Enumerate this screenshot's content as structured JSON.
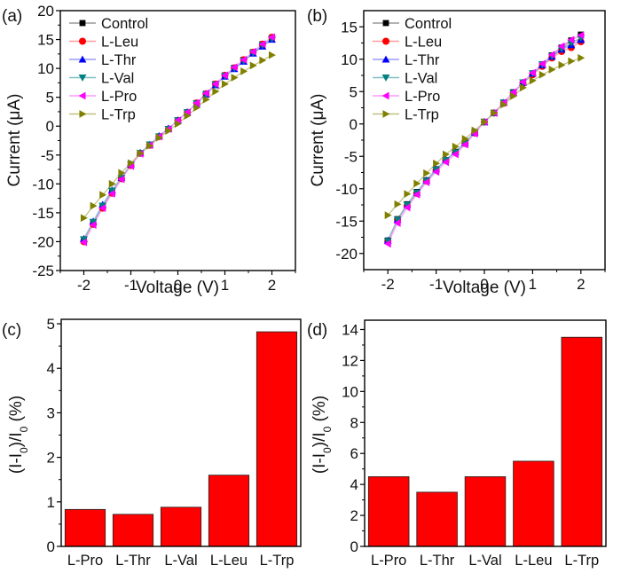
{
  "chart_data": [
    {
      "panel": "(a)",
      "type": "line",
      "xlabel": "Voltage (V)",
      "ylabel": "Current (μA)",
      "xlim": [
        -2.5,
        2.5
      ],
      "ylim": [
        -25,
        20
      ],
      "xticks": [
        -2,
        -1,
        0,
        1,
        2
      ],
      "yticks": [
        -25,
        -20,
        -15,
        -10,
        -5,
        0,
        5,
        10,
        15,
        20
      ],
      "legend_position": "top-left",
      "x": [
        -2,
        -1.8,
        -1.6,
        -1.4,
        -1.2,
        -1,
        -0.8,
        -0.6,
        -0.4,
        -0.2,
        0,
        0.2,
        0.4,
        0.6,
        0.8,
        1,
        1.2,
        1.4,
        1.6,
        1.8,
        2
      ],
      "series": [
        {
          "name": "Control",
          "color": "#000000",
          "line": "#9a9a9a",
          "marker": "square",
          "values": [
            -19.8,
            -16.8,
            -14.0,
            -11.5,
            -9.0,
            -6.7,
            -4.7,
            -3.3,
            -1.8,
            -0.5,
            1.0,
            2.4,
            4.0,
            5.6,
            7.3,
            8.8,
            10.1,
            11.5,
            12.8,
            14.2,
            15.3
          ]
        },
        {
          "name": "L-Leu",
          "color": "#ff0000",
          "line": "#ff9a9a",
          "marker": "circle",
          "values": [
            -20.0,
            -17.0,
            -14.2,
            -11.6,
            -9.1,
            -6.8,
            -4.7,
            -3.3,
            -1.8,
            -0.5,
            1.0,
            2.4,
            4.0,
            5.6,
            7.3,
            8.8,
            10.1,
            11.5,
            12.8,
            14.2,
            15.4
          ]
        },
        {
          "name": "L-Thr",
          "color": "#0000ff",
          "line": "#9a9aff",
          "marker": "triangle-up",
          "values": [
            -19.5,
            -16.5,
            -13.6,
            -11.1,
            -8.9,
            -6.6,
            -4.6,
            -3.2,
            -1.7,
            -0.4,
            1.0,
            2.4,
            3.9,
            5.5,
            7.1,
            8.6,
            9.9,
            11.2,
            12.6,
            13.8,
            15.0
          ]
        },
        {
          "name": "L-Val",
          "color": "#008080",
          "line": "#80c0c0",
          "marker": "triangle-down",
          "values": [
            -19.6,
            -16.6,
            -13.8,
            -11.2,
            -9.0,
            -6.7,
            -4.7,
            -3.2,
            -1.8,
            -0.5,
            1.0,
            2.4,
            3.9,
            5.5,
            7.2,
            8.7,
            10.0,
            11.3,
            12.7,
            14.0,
            15.1
          ]
        },
        {
          "name": "L-Pro",
          "color": "#ff00ff",
          "line": "#ff9aff",
          "marker": "triangle-left",
          "values": [
            -20.1,
            -17.1,
            -14.2,
            -11.7,
            -9.2,
            -6.9,
            -4.8,
            -3.3,
            -1.8,
            -0.5,
            1.0,
            2.4,
            4.0,
            5.7,
            7.3,
            8.8,
            10.2,
            11.5,
            12.9,
            14.2,
            15.4
          ]
        },
        {
          "name": "L-Trp",
          "color": "#808000",
          "line": "#c0c080",
          "marker": "triangle-right",
          "values": [
            -15.9,
            -13.8,
            -11.9,
            -10.0,
            -8.1,
            -6.4,
            -4.7,
            -3.4,
            -2.0,
            -0.8,
            0.4,
            1.8,
            3.2,
            4.6,
            6.0,
            7.3,
            8.4,
            9.5,
            10.5,
            11.4,
            12.3
          ]
        }
      ]
    },
    {
      "panel": "(b)",
      "type": "line",
      "xlabel": "Voltage (V)",
      "ylabel": "Current (μA)",
      "xlim": [
        -2.5,
        2.5
      ],
      "ylim": [
        -22.5,
        17.5
      ],
      "xticks": [
        -2,
        -1,
        0,
        1,
        2
      ],
      "yticks": [
        -20,
        -15,
        -10,
        -5,
        0,
        5,
        10,
        15
      ],
      "legend_position": "top-left",
      "x": [
        -2,
        -1.8,
        -1.6,
        -1.4,
        -1.2,
        -1,
        -0.8,
        -0.6,
        -0.4,
        -0.2,
        0,
        0.2,
        0.4,
        0.6,
        0.8,
        1,
        1.2,
        1.4,
        1.6,
        1.8,
        2
      ],
      "series": [
        {
          "name": "Control",
          "color": "#000000",
          "line": "#9a9a9a",
          "marker": "square",
          "values": [
            -18.0,
            -14.7,
            -12.4,
            -10.5,
            -8.7,
            -7.0,
            -5.6,
            -4.3,
            -2.9,
            -1.3,
            0.3,
            1.7,
            3.3,
            4.9,
            6.4,
            7.8,
            9.2,
            10.6,
            11.8,
            12.9,
            13.8
          ]
        },
        {
          "name": "L-Leu",
          "color": "#ff0000",
          "line": "#ff9a9a",
          "marker": "circle",
          "values": [
            -18.1,
            -14.8,
            -12.6,
            -10.7,
            -8.8,
            -7.1,
            -5.6,
            -4.4,
            -3.0,
            -1.4,
            0.3,
            1.7,
            3.2,
            4.7,
            6.3,
            7.6,
            8.9,
            10.2,
            11.2,
            11.8,
            12.7
          ]
        },
        {
          "name": "L-Thr",
          "color": "#0000ff",
          "line": "#9a9aff",
          "marker": "triangle-up",
          "values": [
            -18.0,
            -14.8,
            -12.5,
            -10.6,
            -8.7,
            -7.0,
            -5.5,
            -4.3,
            -2.9,
            -1.3,
            0.3,
            1.7,
            3.3,
            4.8,
            6.4,
            7.8,
            9.1,
            10.4,
            11.5,
            12.2,
            13.0
          ]
        },
        {
          "name": "L-Val",
          "color": "#008080",
          "line": "#80c0c0",
          "marker": "triangle-down",
          "values": [
            -18.1,
            -14.8,
            -12.5,
            -10.6,
            -8.8,
            -7.1,
            -5.6,
            -4.4,
            -3.0,
            -1.4,
            0.3,
            1.7,
            3.3,
            4.8,
            6.4,
            7.8,
            9.2,
            10.5,
            11.6,
            12.5,
            13.3
          ]
        },
        {
          "name": "L-Pro",
          "color": "#ff00ff",
          "line": "#ff9aff",
          "marker": "triangle-left",
          "values": [
            -18.5,
            -15.3,
            -12.9,
            -10.9,
            -9.0,
            -7.4,
            -5.9,
            -4.7,
            -3.2,
            -1.5,
            0.3,
            1.7,
            3.3,
            4.9,
            6.5,
            7.9,
            9.3,
            10.7,
            12.0,
            13.0,
            13.7
          ]
        },
        {
          "name": "L-Trp",
          "color": "#808000",
          "line": "#c0c080",
          "marker": "triangle-right",
          "values": [
            -14.1,
            -12.4,
            -10.8,
            -9.2,
            -7.6,
            -6.1,
            -4.7,
            -3.5,
            -2.3,
            -1.0,
            0.3,
            1.7,
            3.0,
            4.3,
            5.6,
            6.7,
            7.6,
            8.4,
            9.1,
            9.7,
            10.2
          ]
        }
      ]
    },
    {
      "panel": "(c)",
      "type": "bar",
      "xlabel": "",
      "ylabel_parts": [
        "(I-I",
        "0",
        ")/I",
        "0",
        " (%)"
      ],
      "ylim": [
        0,
        5.1
      ],
      "yticks": [
        0,
        1,
        2,
        3,
        4,
        5
      ],
      "categories": [
        "L-Pro",
        "L-Thr",
        "L-Val",
        "L-Leu",
        "L-Trp"
      ],
      "values": [
        0.83,
        0.72,
        0.88,
        1.6,
        4.82
      ],
      "bar_color": "#ff0000"
    },
    {
      "panel": "(d)",
      "type": "bar",
      "xlabel": "",
      "ylabel_parts": [
        "(I-I",
        "0",
        ")/I",
        "0",
        " (%)"
      ],
      "ylim": [
        0,
        14.6
      ],
      "yticks": [
        0,
        2,
        4,
        6,
        8,
        10,
        12,
        14
      ],
      "categories": [
        "L-Pro",
        "L-Thr",
        "L-Val",
        "L-Leu",
        "L-Trp"
      ],
      "values": [
        4.5,
        3.5,
        4.5,
        5.5,
        13.5
      ],
      "bar_color": "#ff0000"
    }
  ]
}
